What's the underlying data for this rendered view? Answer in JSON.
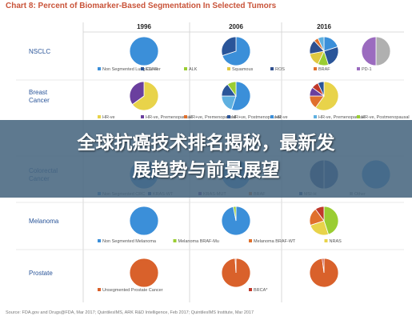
{
  "chart_data": {
    "type": "pie",
    "title": "Chart 8: Percent of Biomarker-Based Segmentation In Selected Tumors",
    "years": [
      "1996",
      "2006",
      "2016"
    ],
    "rows": [
      {
        "name": "NSCLC",
        "legend": [
          {
            "label": "Non Segmented Lung Cancer",
            "color": "#3b8fd9"
          },
          {
            "label": "EGFR",
            "color": "#2a5599"
          },
          {
            "label": "ALK",
            "color": "#9acd32"
          },
          {
            "label": "Squamous",
            "color": "#e0c840"
          },
          {
            "label": "ROS",
            "color": "#2f4f8f"
          },
          {
            "label": "BRAF",
            "color": "#e0702c"
          },
          {
            "label": "PD-1",
            "color": "#9b6bbf"
          }
        ],
        "pies": [
          [
            {
              "value": 100,
              "color": "#3b8fd9"
            }
          ],
          [
            {
              "value": 70,
              "color": "#3b8fd9"
            },
            {
              "value": 30,
              "color": "#2a5599"
            }
          ],
          [
            {
              "value": 20,
              "color": "#3b8fd9"
            },
            {
              "value": 25,
              "color": "#2a5599"
            },
            {
              "value": 12,
              "color": "#9acd32"
            },
            {
              "value": 15,
              "color": "#e0c840"
            },
            {
              "value": 16,
              "color": "#2f4f8f"
            },
            {
              "value": 5,
              "color": "#e0702c"
            },
            {
              "value": 7,
              "color": "#5fb0e0"
            }
          ],
          [
            {
              "value": 50,
              "color": "#b0b0b0"
            },
            {
              "value": 50,
              "color": "#9b6bbf"
            }
          ]
        ]
      },
      {
        "name": "Breast Cancer",
        "legend": [
          {
            "label": "HR-ve",
            "color": "#e8d34a"
          },
          {
            "label": "HR-ve, Premenopausal",
            "color": "#6a3f9e"
          },
          {
            "label": "HR+ve, Premenopausal",
            "color": "#e0702c"
          },
          {
            "label": "HR+ve, Postmenopausal",
            "color": "#2a5599"
          },
          {
            "label": "HR-ve",
            "color": "#3b8fd9"
          },
          {
            "label": "HR-ve, Premenopausal",
            "color": "#5fb0e0"
          },
          {
            "label": "HR-ve, Postmenopausal",
            "color": "#9acd32"
          }
        ],
        "pies": [
          [
            {
              "value": 65,
              "color": "#e8d34a"
            },
            {
              "value": 35,
              "color": "#6a3f9e"
            }
          ],
          [
            {
              "value": 55,
              "color": "#3b8fd9"
            },
            {
              "value": 20,
              "color": "#5fb0e0"
            },
            {
              "value": 15,
              "color": "#2a5599"
            },
            {
              "value": 10,
              "color": "#9acd32"
            }
          ],
          [
            {
              "value": 60,
              "color": "#e8d34a"
            },
            {
              "value": 15,
              "color": "#e0702c"
            },
            {
              "value": 10,
              "color": "#6a3f9e"
            },
            {
              "value": 8,
              "color": "#c0392b"
            },
            {
              "value": 7,
              "color": "#2a5599"
            }
          ]
        ]
      },
      {
        "name": "Colorectal Cancer",
        "legend": [
          {
            "label": "Non Segmented CRC",
            "color": "#3b8fd9"
          },
          {
            "label": "KRAS-WT",
            "color": "#2a5599"
          },
          {
            "label": "KRAS-MUT",
            "color": "#6a3f9e"
          },
          {
            "label": "BRAF",
            "color": "#e0702c"
          },
          {
            "label": "MSI-H",
            "color": "#2f4f8f"
          },
          {
            "label": "Other",
            "color": "#b0b0b0"
          }
        ],
        "pies": [
          [
            {
              "value": 100,
              "color": "#3b8fd9"
            }
          ],
          [
            {
              "value": 100,
              "color": "#3b8fd9"
            }
          ],
          [
            {
              "value": 50,
              "color": "#2a5599"
            },
            {
              "value": 50,
              "color": "#2f4f8f"
            }
          ],
          [
            {
              "value": 100,
              "color": "#3b8fd9"
            }
          ]
        ]
      },
      {
        "name": "Melanoma",
        "legend": [
          {
            "label": "Non Segmented Melanoma",
            "color": "#3b8fd9"
          },
          {
            "label": "Melanoma BRAF-Mu",
            "color": "#9acd32"
          },
          {
            "label": "Melanoma BRAF-WT",
            "color": "#e0702c"
          },
          {
            "label": "NRAS",
            "color": "#e8d34a"
          }
        ],
        "pies": [
          [
            {
              "value": 100,
              "color": "#3b8fd9"
            }
          ],
          [
            {
              "value": 97,
              "color": "#3b8fd9"
            },
            {
              "value": 3,
              "color": "#9acd32"
            }
          ],
          [
            {
              "value": 45,
              "color": "#9acd32"
            },
            {
              "value": 25,
              "color": "#e8d34a"
            },
            {
              "value": 20,
              "color": "#e0702c"
            },
            {
              "value": 10,
              "color": "#c0392b"
            }
          ]
        ]
      },
      {
        "name": "Prostate",
        "legend": [
          {
            "label": "Unsegmented Prostate Cancer",
            "color": "#d9612b"
          },
          {
            "label": "BRCA*",
            "color": "#c0392b"
          }
        ],
        "pies": [
          [
            {
              "value": 100,
              "color": "#d9612b"
            }
          ],
          [
            {
              "value": 99,
              "color": "#d9612b"
            },
            {
              "value": 1,
              "color": "#c0392b"
            }
          ],
          [
            {
              "value": 98,
              "color": "#d9612b"
            },
            {
              "value": 2,
              "color": "#c0392b"
            }
          ]
        ]
      }
    ],
    "source": "Source: FDA.gov and Drugs@FDA, Mar 2017; QuintilesIMS, ARK R&D Intelligence, Feb 2017; QuintilesIMS Institute, Mar 2017"
  },
  "banner": {
    "line1": "全球抗癌技术排名揭秘，最新发",
    "line2": "展趋势与前景展望"
  }
}
